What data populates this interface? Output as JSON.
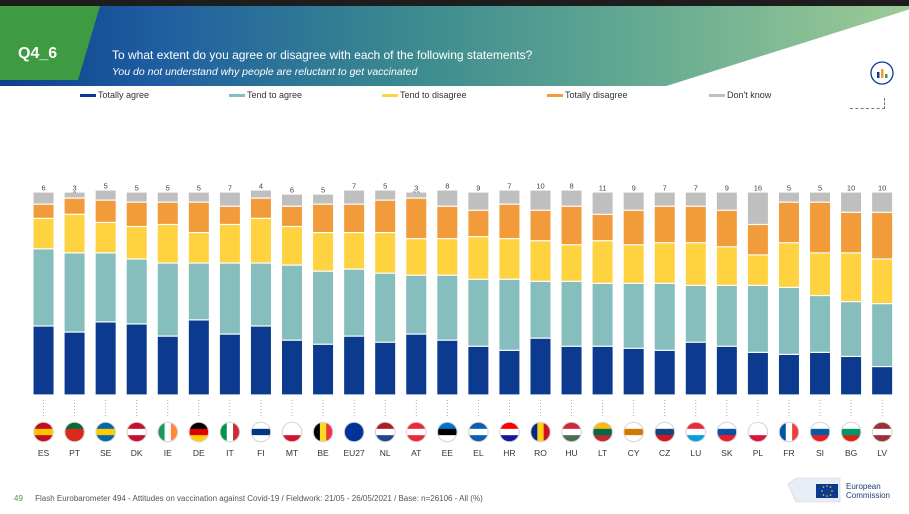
{
  "header": {
    "code": "Q4_6",
    "question": "To what extent do you agree or disagree with each of the following statements?",
    "statement": "You do not understand why people are reluctant to get vaccinated"
  },
  "legend": [
    {
      "name": "Totally agree",
      "color": "#0b3a8e"
    },
    {
      "name": "Tend to agree",
      "color": "#86bdbd"
    },
    {
      "name": "Tend to disagree",
      "color": "#ffd23f"
    },
    {
      "name": "Totally disagree",
      "color": "#f29b3a"
    },
    {
      "name": "Don't know",
      "color": "#bfbfbf"
    }
  ],
  "chart_data": {
    "type": "bar",
    "stacked": true,
    "orientation": "vertical",
    "unit": "%",
    "categories": [
      "ES",
      "PT",
      "SE",
      "DK",
      "IE",
      "DE",
      "IT",
      "FI",
      "MT",
      "BE",
      "EU27",
      "NL",
      "AT",
      "EE",
      "EL",
      "HR",
      "RO",
      "HU",
      "LT",
      "CY",
      "CZ",
      "LU",
      "SK",
      "PL",
      "FR",
      "SI",
      "BG",
      "LV"
    ],
    "series": [
      {
        "name": "Totally agree",
        "color": "#0b3a8e",
        "values": [
          34,
          31,
          36,
          35,
          29,
          37,
          30,
          34,
          27,
          25,
          29,
          26,
          30,
          27,
          24,
          22,
          28,
          24,
          24,
          23,
          22,
          26,
          24,
          21,
          20,
          21,
          19,
          14
        ]
      },
      {
        "name": "Tend to agree",
        "color": "#86bdbd",
        "values": [
          38,
          39,
          34,
          32,
          36,
          28,
          35,
          31,
          37,
          36,
          33,
          34,
          29,
          32,
          33,
          35,
          28,
          32,
          31,
          32,
          33,
          28,
          30,
          33,
          33,
          28,
          27,
          31
        ]
      },
      {
        "name": "Tend to disagree",
        "color": "#ffd23f",
        "values": [
          15,
          19,
          15,
          16,
          19,
          15,
          19,
          22,
          19,
          19,
          18,
          20,
          18,
          18,
          21,
          20,
          20,
          18,
          21,
          19,
          20,
          21,
          19,
          15,
          22,
          21,
          24,
          22
        ]
      },
      {
        "name": "Totally disagree",
        "color": "#f29b3a",
        "values": [
          7,
          8,
          11,
          12,
          11,
          15,
          9,
          10,
          10,
          14,
          14,
          16,
          20,
          16,
          13,
          17,
          15,
          19,
          13,
          17,
          18,
          18,
          18,
          15,
          20,
          25,
          20,
          23
        ]
      },
      {
        "name": "Don't know",
        "color": "#bfbfbf",
        "values": [
          6,
          3,
          5,
          5,
          5,
          5,
          7,
          4,
          6,
          5,
          7,
          5,
          3,
          8,
          9,
          7,
          10,
          8,
          11,
          9,
          7,
          7,
          9,
          16,
          5,
          5,
          10,
          10
        ]
      }
    ]
  },
  "footer": {
    "page": "49",
    "source": "Flash Eurobarometer 494 - Attitudes on vaccination against Covid-19   /   Fieldwork: 21/05 - 26/05/2021   /   Base: n=26106 - All  (%)"
  },
  "logo": {
    "line1": "European",
    "line2": "Commission"
  }
}
